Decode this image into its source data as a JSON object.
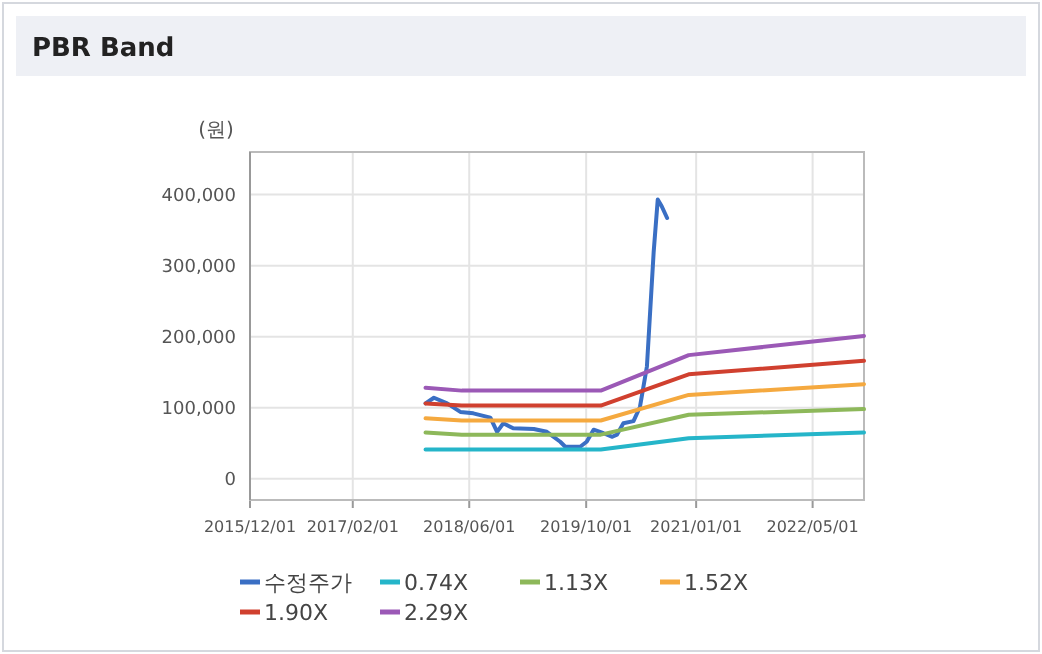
{
  "chart_data": {
    "type": "line",
    "title": "PBR Band",
    "ylabel": "(원)",
    "xlim": [
      "2015-12-01",
      "2022-12-01"
    ],
    "ylim": [
      -30000,
      460000
    ],
    "xticks": [
      {
        "value": "2015-12-01",
        "label": "2015/12/01"
      },
      {
        "value": "2017-02-01",
        "label": "2017/02/01"
      },
      {
        "value": "2018-06-01",
        "label": "2018/06/01"
      },
      {
        "value": "2019-10-01",
        "label": "2019/10/01"
      },
      {
        "value": "2021-01-01",
        "label": "2021/01/01"
      },
      {
        "value": "2022-05-01",
        "label": "2022/05/01"
      }
    ],
    "yticks": [
      0,
      {
        "value": 100000,
        "label": "100,000"
      },
      {
        "value": 200000,
        "label": "200,000"
      },
      {
        "value": 300000,
        "label": "300,000"
      },
      {
        "value": 400000,
        "label": "400,000"
      }
    ],
    "grid": true,
    "legend": "bottom",
    "marker": "none",
    "line_style": "solid",
    "series": [
      {
        "name": "수정주가",
        "color": "#3a6fc4",
        "x": [
          "2017-12-01",
          "2018-01-05",
          "2018-03-01",
          "2018-04-25",
          "2018-06-18",
          "2018-08-28",
          "2018-09-25",
          "2018-10-21",
          "2018-12-01",
          "2019-02-25",
          "2019-04-20",
          "2019-06-15",
          "2019-07-06",
          "2019-09-06",
          "2019-10-03",
          "2019-11-01",
          "2019-12-12",
          "2020-01-18",
          "2020-02-06",
          "2020-03-04",
          "2020-04-15",
          "2020-05-12",
          "2020-06-10",
          "2020-07-08",
          "2020-07-25",
          "2020-08-10",
          "2020-09-02"
        ],
        "values": [
          106000,
          114000,
          106000,
          94000,
          92000,
          86000,
          66000,
          78000,
          71000,
          70000,
          66000,
          52000,
          45000,
          45000,
          52000,
          69000,
          64000,
          59000,
          62000,
          78000,
          81000,
          101000,
          158000,
          319000,
          393000,
          384000,
          367000
        ]
      },
      {
        "name": "0.74X",
        "color": "#25b5c9",
        "x": [
          "2017-12-01",
          "2019-12-01",
          "2020-12-01",
          "2022-12-01"
        ],
        "values": [
          41000,
          41000,
          57000,
          65000
        ]
      },
      {
        "name": "1.13X",
        "color": "#8db85a",
        "x": [
          "2017-12-01",
          "2018-05-01",
          "2019-12-01",
          "2020-12-01",
          "2022-12-01"
        ],
        "values": [
          65000,
          62000,
          62000,
          90000,
          98000
        ]
      },
      {
        "name": "1.52X",
        "color": "#f5a93f",
        "x": [
          "2017-12-01",
          "2018-05-01",
          "2019-12-01",
          "2020-12-01",
          "2022-12-01"
        ],
        "values": [
          85000,
          82000,
          82000,
          118000,
          133000
        ]
      },
      {
        "name": "1.90X",
        "color": "#d0402f",
        "x": [
          "2017-12-01",
          "2018-05-01",
          "2019-12-01",
          "2020-12-01",
          "2022-12-01"
        ],
        "values": [
          106000,
          103000,
          103000,
          147000,
          166000
        ]
      },
      {
        "name": "2.29X",
        "color": "#9b59b6",
        "x": [
          "2017-12-01",
          "2018-05-01",
          "2019-12-01",
          "2020-12-01",
          "2022-12-01"
        ],
        "values": [
          128000,
          124000,
          124000,
          174000,
          201000
        ]
      }
    ]
  }
}
